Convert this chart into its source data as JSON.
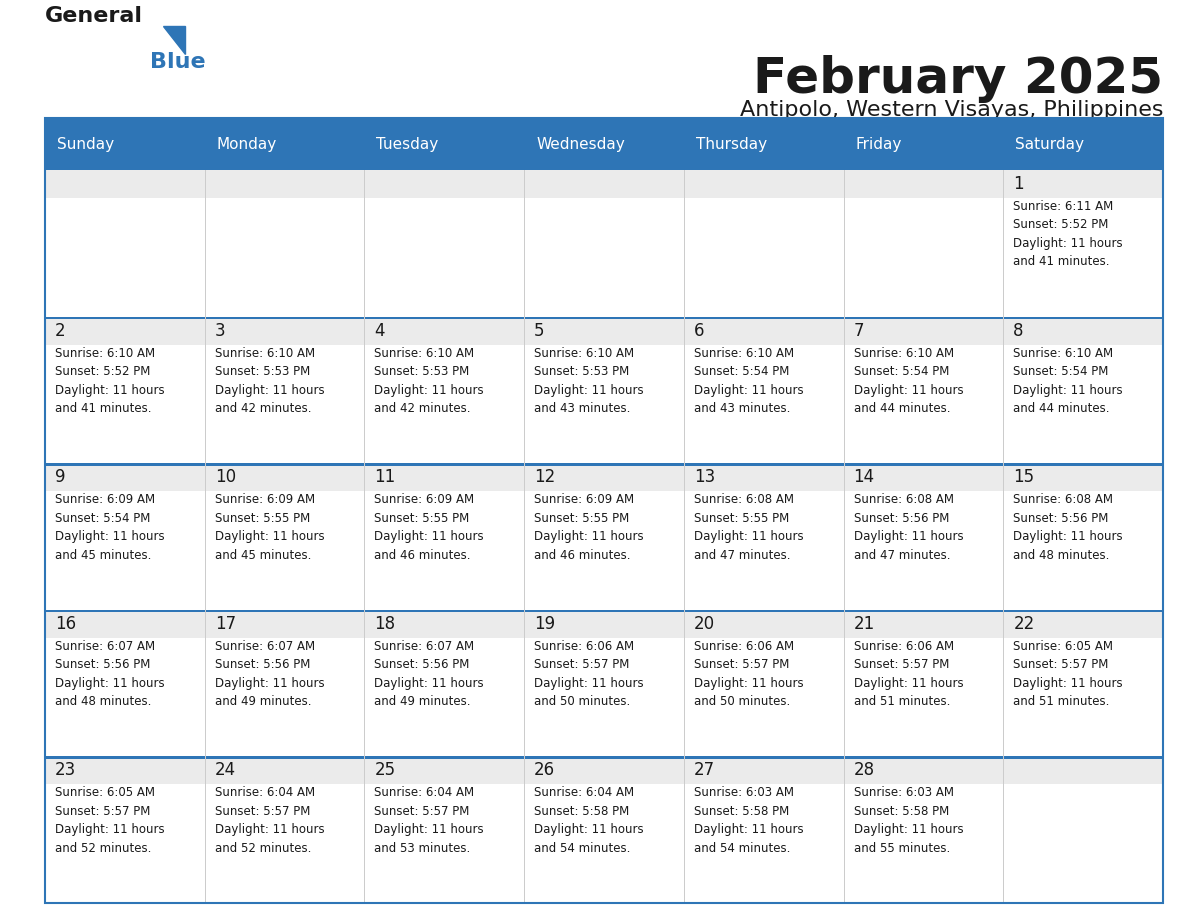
{
  "title": "February 2025",
  "subtitle": "Antipolo, Western Visayas, Philippines",
  "header_bg": "#2E75B6",
  "header_text": "#FFFFFF",
  "row_sep_color": "#2E75B6",
  "day_number_color": "#1a1a1a",
  "cell_text_color": "#1a1a1a",
  "cell_bg_gray": "#EBEBEB",
  "cell_bg_white": "#FFFFFF",
  "logo_general_color": "#1a1a1a",
  "logo_blue_color": "#2E75B6",
  "day_headers": [
    "Sunday",
    "Monday",
    "Tuesday",
    "Wednesday",
    "Thursday",
    "Friday",
    "Saturday"
  ],
  "calendar": [
    [
      null,
      null,
      null,
      null,
      null,
      null,
      {
        "day": 1,
        "sunrise": "6:11 AM",
        "sunset": "5:52 PM",
        "daylight": "11 hours and 41 minutes."
      }
    ],
    [
      {
        "day": 2,
        "sunrise": "6:10 AM",
        "sunset": "5:52 PM",
        "daylight": "11 hours and 41 minutes."
      },
      {
        "day": 3,
        "sunrise": "6:10 AM",
        "sunset": "5:53 PM",
        "daylight": "11 hours and 42 minutes."
      },
      {
        "day": 4,
        "sunrise": "6:10 AM",
        "sunset": "5:53 PM",
        "daylight": "11 hours and 42 minutes."
      },
      {
        "day": 5,
        "sunrise": "6:10 AM",
        "sunset": "5:53 PM",
        "daylight": "11 hours and 43 minutes."
      },
      {
        "day": 6,
        "sunrise": "6:10 AM",
        "sunset": "5:54 PM",
        "daylight": "11 hours and 43 minutes."
      },
      {
        "day": 7,
        "sunrise": "6:10 AM",
        "sunset": "5:54 PM",
        "daylight": "11 hours and 44 minutes."
      },
      {
        "day": 8,
        "sunrise": "6:10 AM",
        "sunset": "5:54 PM",
        "daylight": "11 hours and 44 minutes."
      }
    ],
    [
      {
        "day": 9,
        "sunrise": "6:09 AM",
        "sunset": "5:54 PM",
        "daylight": "11 hours and 45 minutes."
      },
      {
        "day": 10,
        "sunrise": "6:09 AM",
        "sunset": "5:55 PM",
        "daylight": "11 hours and 45 minutes."
      },
      {
        "day": 11,
        "sunrise": "6:09 AM",
        "sunset": "5:55 PM",
        "daylight": "11 hours and 46 minutes."
      },
      {
        "day": 12,
        "sunrise": "6:09 AM",
        "sunset": "5:55 PM",
        "daylight": "11 hours and 46 minutes."
      },
      {
        "day": 13,
        "sunrise": "6:08 AM",
        "sunset": "5:55 PM",
        "daylight": "11 hours and 47 minutes."
      },
      {
        "day": 14,
        "sunrise": "6:08 AM",
        "sunset": "5:56 PM",
        "daylight": "11 hours and 47 minutes."
      },
      {
        "day": 15,
        "sunrise": "6:08 AM",
        "sunset": "5:56 PM",
        "daylight": "11 hours and 48 minutes."
      }
    ],
    [
      {
        "day": 16,
        "sunrise": "6:07 AM",
        "sunset": "5:56 PM",
        "daylight": "11 hours and 48 minutes."
      },
      {
        "day": 17,
        "sunrise": "6:07 AM",
        "sunset": "5:56 PM",
        "daylight": "11 hours and 49 minutes."
      },
      {
        "day": 18,
        "sunrise": "6:07 AM",
        "sunset": "5:56 PM",
        "daylight": "11 hours and 49 minutes."
      },
      {
        "day": 19,
        "sunrise": "6:06 AM",
        "sunset": "5:57 PM",
        "daylight": "11 hours and 50 minutes."
      },
      {
        "day": 20,
        "sunrise": "6:06 AM",
        "sunset": "5:57 PM",
        "daylight": "11 hours and 50 minutes."
      },
      {
        "day": 21,
        "sunrise": "6:06 AM",
        "sunset": "5:57 PM",
        "daylight": "11 hours and 51 minutes."
      },
      {
        "day": 22,
        "sunrise": "6:05 AM",
        "sunset": "5:57 PM",
        "daylight": "11 hours and 51 minutes."
      }
    ],
    [
      {
        "day": 23,
        "sunrise": "6:05 AM",
        "sunset": "5:57 PM",
        "daylight": "11 hours and 52 minutes."
      },
      {
        "day": 24,
        "sunrise": "6:04 AM",
        "sunset": "5:57 PM",
        "daylight": "11 hours and 52 minutes."
      },
      {
        "day": 25,
        "sunrise": "6:04 AM",
        "sunset": "5:57 PM",
        "daylight": "11 hours and 53 minutes."
      },
      {
        "day": 26,
        "sunrise": "6:04 AM",
        "sunset": "5:58 PM",
        "daylight": "11 hours and 54 minutes."
      },
      {
        "day": 27,
        "sunrise": "6:03 AM",
        "sunset": "5:58 PM",
        "daylight": "11 hours and 54 minutes."
      },
      {
        "day": 28,
        "sunrise": "6:03 AM",
        "sunset": "5:58 PM",
        "daylight": "11 hours and 55 minutes."
      },
      null
    ]
  ]
}
